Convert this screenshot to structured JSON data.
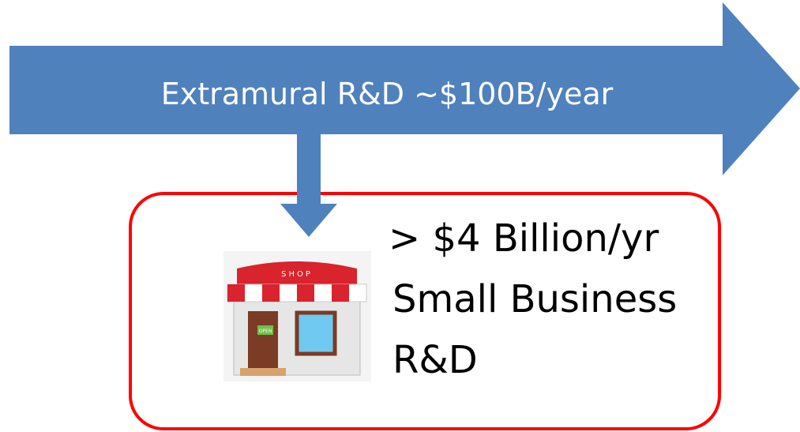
{
  "arrow": {
    "label": "Extramural R&D ~$100B/year"
  },
  "box": {
    "lines": [
      "> $4 Billion/yr",
      "Small Business",
      "R&D"
    ]
  },
  "icon": {
    "sign": "SHOP",
    "door_sign": "OPEN"
  }
}
